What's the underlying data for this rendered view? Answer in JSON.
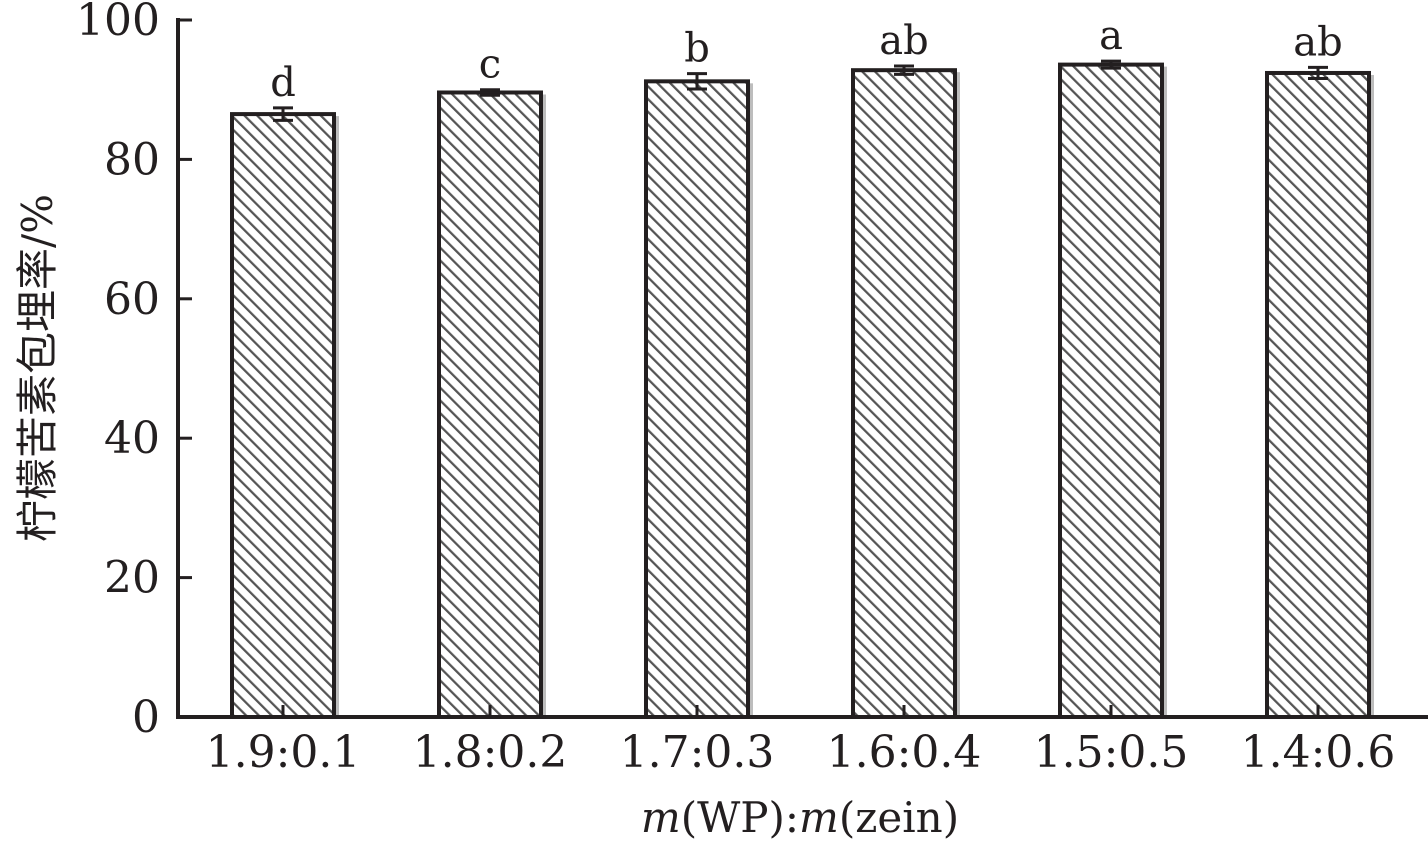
{
  "chart_data": {
    "type": "bar",
    "title": "",
    "xlabel": "m(WP):m(zein)",
    "xlabel_parts": {
      "m1": "m",
      "mid": "(WP):",
      "m2": "m",
      "end": "(zein)"
    },
    "ylabel": "柠檬苦素包埋率/%",
    "categories": [
      "1.9:0.1",
      "1.8:0.2",
      "1.7:0.3",
      "1.6:0.4",
      "1.5:0.5",
      "1.4:0.6"
    ],
    "values": [
      86.5,
      89.6,
      91.2,
      92.8,
      93.6,
      92.4
    ],
    "errors": [
      0.9,
      0.4,
      1.1,
      0.6,
      0.5,
      0.8
    ],
    "significance_labels": [
      "d",
      "c",
      "b",
      "ab",
      "a",
      "ab"
    ],
    "ylim": [
      0,
      100
    ],
    "yticks": [
      0,
      20,
      40,
      60,
      80,
      100
    ],
    "grid": false,
    "legend": "none",
    "bar_pattern": "diagonal-hatch",
    "colors": {
      "ink": "#231f20",
      "bar_fill": "#ffffff",
      "hatch": "#555555",
      "shadow": "#bdbdbd"
    }
  }
}
